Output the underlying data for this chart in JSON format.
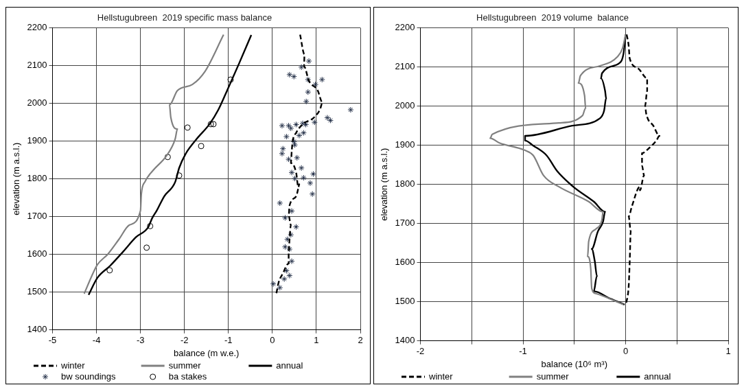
{
  "chart_data": [
    {
      "type": "line",
      "title": "Hellstugubreen  2019 specific mass balance",
      "xlabel": "balance (m w.e.)",
      "ylabel": "elevation (m a.s.l.)",
      "xlim": [
        -5,
        2
      ],
      "xticks": [
        -5,
        -4,
        -3,
        -2,
        -1,
        0,
        1,
        2
      ],
      "ylim": [
        1400,
        2200
      ],
      "yticks": [
        1400,
        1500,
        1600,
        1700,
        1800,
        1900,
        2000,
        2100,
        2200
      ],
      "grid": true,
      "legend": "bottom",
      "series": [
        {
          "name": "winter",
          "color": "#000000",
          "line_style": "dashed",
          "x": [
            0.63,
            0.73,
            0.72,
            0.83,
            1.03,
            1.14,
            1.08,
            0.93,
            0.69,
            0.54,
            0.46,
            0.44,
            0.42,
            0.54,
            0.59,
            0.61,
            0.54,
            0.39,
            0.37,
            0.42,
            0.39,
            0.37,
            0.37,
            0.24,
            0.14,
            0.09
          ],
          "values": [
            2182,
            2130,
            2098,
            2060,
            2034,
            2002,
            1983,
            1961,
            1945,
            1922,
            1899,
            1874,
            1842,
            1817,
            1778,
            1786,
            1754,
            1729,
            1703,
            1678,
            1640,
            1608,
            1576,
            1550,
            1525,
            1496
          ]
        },
        {
          "name": "summer",
          "color": "#808080",
          "line_style": "solid",
          "x": [
            -1.11,
            -1.53,
            -1.82,
            -2.16,
            -2.34,
            -2.31,
            -2.16,
            -2.21,
            -2.41,
            -2.71,
            -2.9,
            -2.98,
            -3.0,
            -3.25,
            -3.49,
            -3.74,
            -3.98,
            -4.08,
            -4.28
          ],
          "values": [
            2182,
            2085,
            2050,
            2034,
            1996,
            1963,
            1932,
            1906,
            1861,
            1823,
            1792,
            1760,
            1716,
            1678,
            1640,
            1601,
            1573,
            1550,
            1496
          ]
        },
        {
          "name": "annual",
          "color": "#000000",
          "line_style": "solid",
          "x": [
            -0.48,
            -0.76,
            -1.03,
            -1.23,
            -1.43,
            -1.72,
            -1.97,
            -2.12,
            -2.21,
            -2.46,
            -2.63,
            -2.73,
            -2.83,
            -3.1,
            -3.39,
            -3.69,
            -3.98,
            -4.18
          ],
          "values": [
            2181,
            2105,
            2034,
            1983,
            1945,
            1906,
            1867,
            1829,
            1792,
            1754,
            1716,
            1697,
            1671,
            1646,
            1608,
            1570,
            1538,
            1493
          ]
        },
        {
          "name": "bw soundings",
          "type": "scatter",
          "marker": "cross",
          "color": "#26324a",
          "x": [
            0.83,
            0.66,
            0.39,
            0.49,
            0.81,
            1.13,
            0.98,
            0.81,
            0.77,
            1.78,
            1.25,
            1.32,
            0.22,
            0.37,
            0.42,
            0.54,
            0.69,
            0.76,
            0.96,
            0.32,
            0.61,
            0.71,
            0.49,
            0.51,
            0.24,
            0.22,
            0.37,
            0.56,
            0.44,
            0.66,
            0.93,
            0.51,
            0.71,
            0.86,
            0.91,
            0.17,
            0.29,
            0.44,
            0.54,
            0.42,
            0.34,
            0.29,
            0.39,
            0.44,
            0.32,
            0.39,
            0.27,
            0.02,
            0.17
          ],
          "values": [
            2112,
            2096,
            2076,
            2071,
            2063,
            2063,
            2050,
            2030,
            2005,
            1983,
            1962,
            1955,
            1941,
            1941,
            1934,
            1944,
            1947,
            1944,
            1950,
            1912,
            1915,
            1922,
            1899,
            1890,
            1880,
            1867,
            1852,
            1856,
            1817,
            1829,
            1813,
            1801,
            1803,
            1789,
            1760,
            1736,
            1697,
            1715,
            1673,
            1652,
            1640,
            1620,
            1614,
            1582,
            1557,
            1544,
            1535,
            1522,
            1512
          ]
        },
        {
          "name": "ba stakes",
          "type": "scatter",
          "marker": "circle",
          "color": "#000000",
          "x": [
            -0.95,
            -1.93,
            -1.4,
            -1.34,
            -1.62,
            -2.38,
            -2.12,
            -2.78,
            -2.86,
            -3.7
          ],
          "values": [
            2063,
            1936,
            1945,
            1945,
            1887,
            1858,
            1809,
            1675,
            1618,
            1558
          ]
        }
      ]
    },
    {
      "type": "line",
      "title": "Hellstugubreen  2019 volume  balance",
      "xlabel": "balance (10⁶ m³)",
      "ylabel": "elevation (m a.s.l.)",
      "xlim": [
        -2,
        1
      ],
      "xticks": [
        -2,
        {
          "value": -1.5,
          "label": null
        },
        -1,
        {
          "value": -0.5,
          "label": null
        },
        0,
        {
          "value": 0.5,
          "label": null
        },
        1
      ],
      "ylim": [
        1400,
        2200
      ],
      "yticks": [
        1400,
        1500,
        1600,
        1700,
        1800,
        1900,
        2000,
        2100,
        2200
      ],
      "grid": true,
      "legend": "bottom",
      "series": [
        {
          "name": "winter",
          "color": "#000000",
          "line_style": "dashed",
          "x": [
            0.01,
            0.03,
            0.04,
            0.12,
            0.21,
            0.21,
            0.19,
            0.2,
            0.27,
            0.33,
            0.3,
            0.23,
            0.16,
            0.16,
            0.18,
            0.14,
            0.14,
            0.06,
            0.03,
            0.05,
            0.04,
            0.03,
            0.01,
            0.0
          ],
          "values": [
            2183,
            2154,
            2122,
            2097,
            2071,
            2039,
            2001,
            1982,
            1950,
            1924,
            1912,
            1893,
            1880,
            1848,
            1823,
            1785,
            1794,
            1743,
            1718,
            1680,
            1603,
            1540,
            1502,
            1495
          ]
        },
        {
          "name": "summer",
          "color": "#808080",
          "line_style": "solid",
          "x": [
            0.0,
            -0.03,
            -0.08,
            -0.25,
            -0.44,
            -0.46,
            -0.4,
            -0.39,
            -0.42,
            -0.65,
            -1.3,
            -1.32,
            -1.23,
            -0.98,
            -0.9,
            -0.8,
            -0.65,
            -0.36,
            -0.22,
            -0.23,
            -0.29,
            -0.36,
            -0.37,
            -0.34,
            -0.33,
            -0.29,
            -0.02
          ],
          "values": [
            2183,
            2148,
            2126,
            2103,
            2078,
            2059,
            2027,
            1995,
            1976,
            1957,
            1928,
            1918,
            1906,
            1887,
            1874,
            1823,
            1794,
            1756,
            1730,
            1711,
            1686,
            1654,
            1616,
            1585,
            1534,
            1521,
            1493
          ]
        },
        {
          "name": "annual",
          "color": "#000000",
          "line_style": "solid",
          "x": [
            0.0,
            -0.02,
            -0.06,
            -0.23,
            -0.24,
            -0.2,
            -0.19,
            -0.21,
            -0.25,
            -0.52,
            -0.98,
            -0.98,
            -0.9,
            -0.77,
            -0.67,
            -0.51,
            -0.31,
            -0.2,
            -0.22,
            -0.27,
            -0.33,
            -0.3,
            -0.28,
            -0.31,
            -0.15,
            -0.01
          ],
          "values": [
            2183,
            2135,
            2110,
            2084,
            2071,
            2039,
            2020,
            1988,
            1969,
            1950,
            1924,
            1912,
            1899,
            1874,
            1835,
            1794,
            1756,
            1730,
            1705,
            1680,
            1635,
            1603,
            1566,
            1527,
            1508,
            1493
          ]
        }
      ]
    }
  ]
}
